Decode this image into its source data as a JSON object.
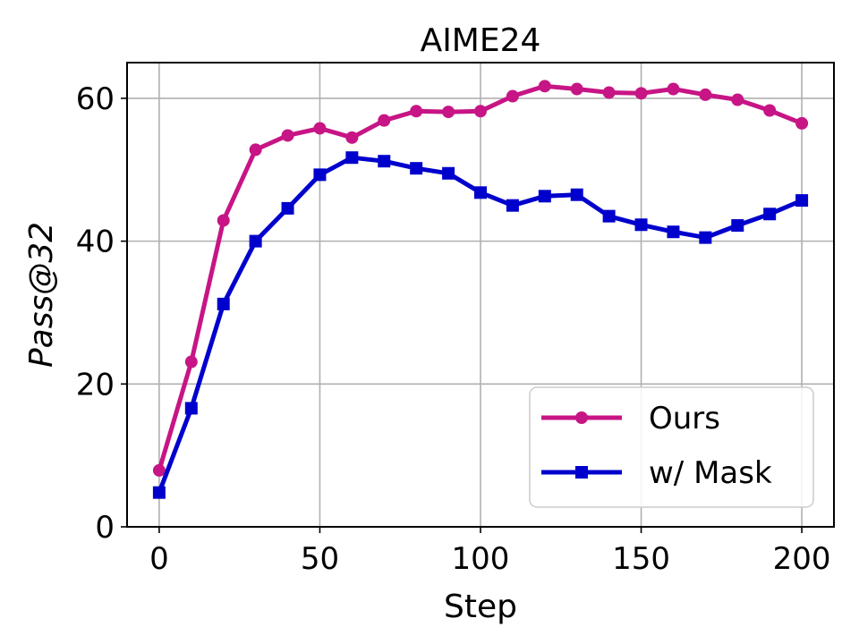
{
  "chart_data": {
    "type": "line",
    "title": "AIME24",
    "xlabel": "Step",
    "ylabel": "Pass@32",
    "xlim": [
      -10,
      210
    ],
    "ylim": [
      0,
      65
    ],
    "xticks": [
      0,
      50,
      100,
      150,
      200
    ],
    "yticks": [
      0,
      20,
      40,
      60
    ],
    "grid": true,
    "legend_position": "lower right",
    "x": [
      0,
      10,
      20,
      30,
      40,
      50,
      60,
      70,
      80,
      90,
      100,
      110,
      120,
      130,
      140,
      150,
      160,
      170,
      180,
      190,
      200
    ],
    "series": [
      {
        "name": "Ours",
        "color": "#c71585",
        "marker": "circle",
        "values": [
          7.9,
          23.1,
          42.9,
          52.8,
          54.8,
          55.8,
          54.5,
          56.9,
          58.2,
          58.1,
          58.2,
          60.3,
          61.7,
          61.3,
          60.8,
          60.7,
          61.3,
          60.5,
          59.8,
          58.3,
          56.5
        ]
      },
      {
        "name": "w/ Mask",
        "color": "#0000cd",
        "marker": "square",
        "values": [
          4.8,
          16.6,
          31.2,
          40.0,
          44.6,
          49.3,
          51.7,
          51.2,
          50.2,
          49.5,
          46.8,
          45.0,
          46.3,
          46.5,
          43.5,
          42.3,
          41.3,
          40.5,
          42.2,
          43.8,
          45.7
        ]
      }
    ]
  }
}
